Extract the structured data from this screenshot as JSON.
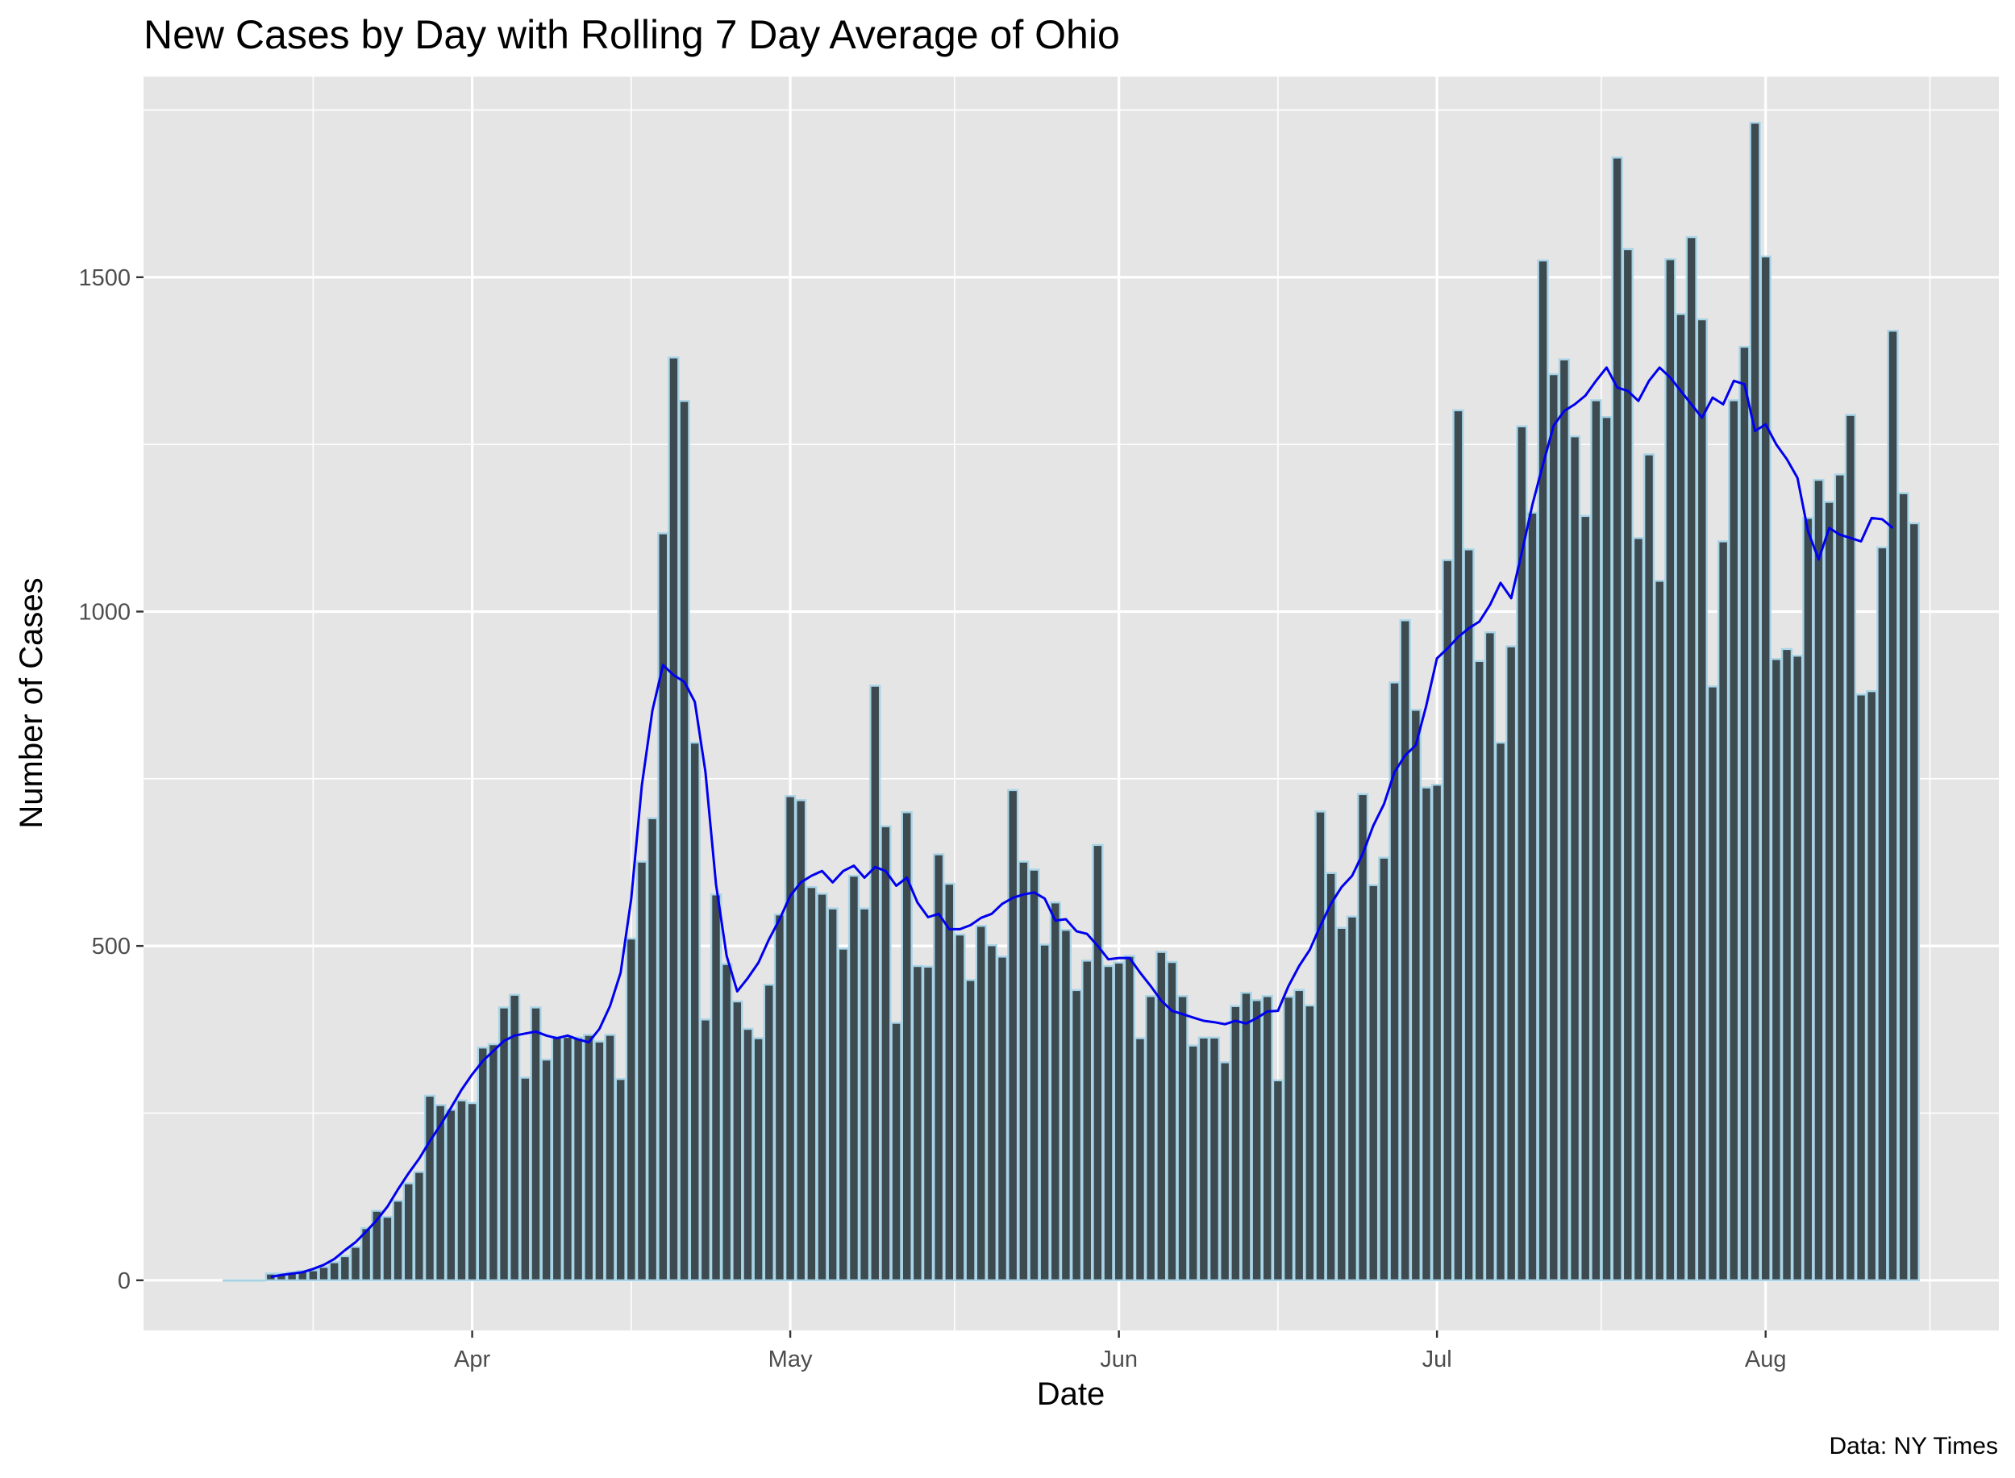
{
  "chart_data": {
    "type": "bar",
    "title": "New Cases by Day with Rolling 7 Day Average of  Ohio",
    "xlabel": "Date",
    "ylabel": "Number of Cases",
    "caption": "Data: NY Times",
    "start_date": "2020-03-09",
    "x_ticks": [
      {
        "date": "2020-04-01",
        "label": "Apr"
      },
      {
        "date": "2020-05-01",
        "label": "May"
      },
      {
        "date": "2020-06-01",
        "label": "Jun"
      },
      {
        "date": "2020-07-01",
        "label": "Jul"
      },
      {
        "date": "2020-08-01",
        "label": "Aug"
      }
    ],
    "y_ticks": [
      0,
      500,
      1000,
      1500
    ],
    "ylim": [
      -75,
      1800
    ],
    "xlim": [
      "2020-03-01",
      "2020-08-23"
    ],
    "grid": true,
    "colors": {
      "panel": "#e5e5e5",
      "grid": "#ffffff",
      "bar_fill": "#3d4a50",
      "bar_outline": "#a8d4e6",
      "average_line": "#0000ee"
    },
    "series": [
      {
        "name": "New Cases",
        "kind": "bar",
        "values": [
          0,
          0,
          0,
          0,
          10,
          10,
          12,
          14,
          15,
          20,
          27,
          36,
          50,
          78,
          104,
          95,
          119,
          145,
          162,
          276,
          262,
          255,
          269,
          265,
          348,
          353,
          408,
          427,
          303,
          408,
          330,
          364,
          364,
          363,
          367,
          357,
          367,
          301,
          511,
          626,
          691,
          1117,
          1380,
          1315,
          804,
          390,
          577,
          473,
          417,
          376,
          362,
          442,
          547,
          724,
          718,
          588,
          578,
          556,
          496,
          605,
          556,
          889,
          679,
          385,
          700,
          470,
          469,
          637,
          593,
          517,
          449,
          530,
          501,
          484,
          733,
          626,
          614,
          502,
          565,
          524,
          434,
          478,
          651,
          470,
          475,
          485,
          362,
          425,
          491,
          476,
          425,
          351,
          363,
          363,
          326,
          410,
          430,
          419,
          425,
          299,
          424,
          434,
          411,
          701,
          609,
          527,
          544,
          727,
          591,
          632,
          894,
          987,
          853,
          737,
          741,
          1077,
          1301,
          1093,
          926,
          969,
          804,
          948,
          1277,
          1148,
          1525,
          1355,
          1377,
          1262,
          1143,
          1316,
          1291,
          1679,
          1542,
          1110,
          1235,
          1046,
          1527,
          1445,
          1560,
          1437,
          888,
          1105,
          1316,
          1396,
          1731,
          1531,
          929,
          944,
          934,
          1140,
          1197,
          1164,
          1205,
          1294,
          876,
          881,
          1096,
          1420,
          1177,
          1132
        ]
      },
      {
        "name": "Rolling 7 Day Average",
        "kind": "line",
        "values": [
          0,
          0,
          0,
          0,
          5,
          8,
          10,
          12,
          17,
          23,
          32,
          45,
          57,
          73,
          90,
          110,
          136,
          160,
          182,
          208,
          232,
          258,
          285,
          308,
          328,
          343,
          358,
          366,
          369,
          372,
          366,
          362,
          366,
          360,
          356,
          376,
          410,
          460,
          570,
          740,
          852,
          920,
          905,
          895,
          865,
          760,
          592,
          485,
          432,
          452,
          475,
          510,
          540,
          575,
          595,
          605,
          612,
          595,
          612,
          620,
          602,
          618,
          612,
          590,
          602,
          565,
          543,
          548,
          525,
          525,
          531,
          542,
          548,
          563,
          572,
          577,
          580,
          571,
          538,
          540,
          522,
          518,
          500,
          480,
          482,
          482,
          460,
          440,
          418,
          403,
          398,
          393,
          388,
          386,
          383,
          388,
          384,
          392,
          402,
          403,
          440,
          470,
          494,
          530,
          563,
          588,
          605,
          638,
          680,
          712,
          760,
          785,
          800,
          860,
          930,
          945,
          962,
          975,
          985,
          1010,
          1043,
          1020,
          1088,
          1160,
          1220,
          1278,
          1300,
          1310,
          1323,
          1345,
          1365,
          1335,
          1330,
          1315,
          1345,
          1365,
          1350,
          1330,
          1310,
          1290,
          1320,
          1310,
          1345,
          1340,
          1270,
          1280,
          1250,
          1228,
          1200,
          1120,
          1078,
          1125,
          1115,
          1110,
          1105,
          1140,
          1138,
          1125
        ]
      }
    ]
  }
}
